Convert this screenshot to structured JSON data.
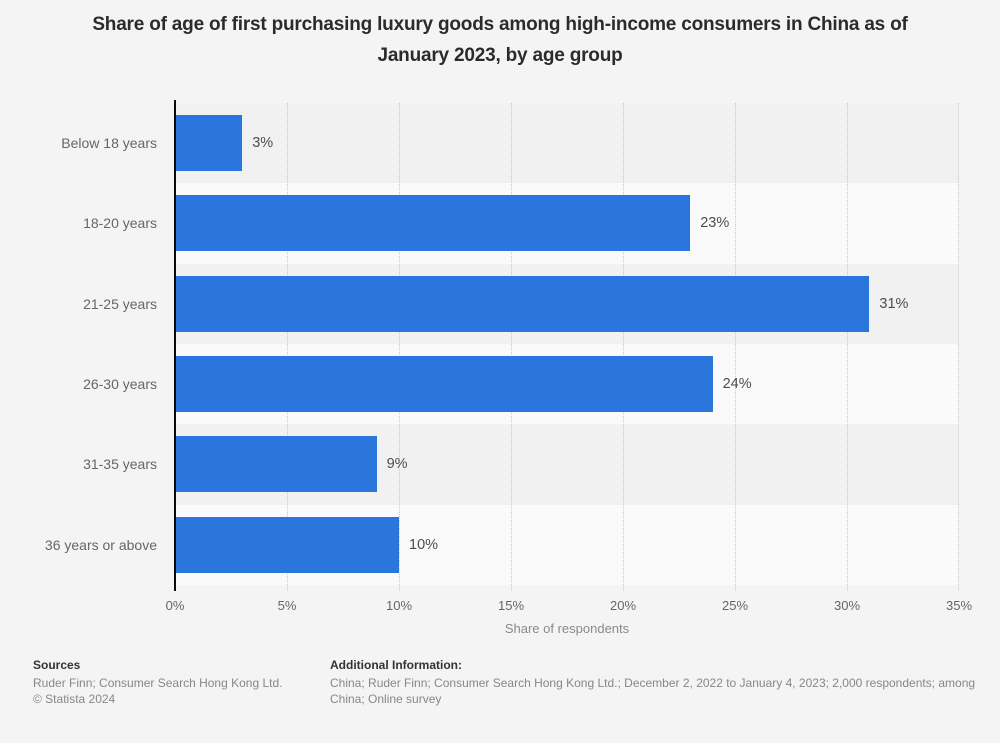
{
  "chart_data": {
    "type": "bar",
    "orientation": "horizontal",
    "title": "Share of age of first purchasing luxury goods among high-income consumers in China as of January 2023, by age group",
    "categories": [
      "Below 18 years",
      "18-20 years",
      "21-25 years",
      "26-30 years",
      "31-35 years",
      "36 years or above"
    ],
    "values": [
      3,
      23,
      31,
      24,
      9,
      10
    ],
    "value_labels": [
      "3%",
      "23%",
      "31%",
      "24%",
      "9%",
      "10%"
    ],
    "xlabel": "Share of respondents",
    "ylabel": "",
    "xlim": [
      0,
      35
    ],
    "x_ticks": [
      "0%",
      "5%",
      "10%",
      "15%",
      "20%",
      "25%",
      "30%",
      "35%"
    ],
    "grid": "vertical-dotted-every-5pct",
    "legend": "none",
    "bar_color": "#2a76dd",
    "band_colors": [
      "#f1f1f1",
      "#fafafa"
    ]
  },
  "footer": {
    "sources_title": "Sources",
    "sources_line1": "Ruder Finn; Consumer Search Hong Kong Ltd.",
    "sources_line2": "© Statista 2024",
    "additional_title": "Additional Information:",
    "additional_text": "China; Ruder Finn; Consumer Search Hong Kong Ltd.; December 2, 2022 to January 4, 2023; 2,000 respondents; among China; Online survey"
  }
}
